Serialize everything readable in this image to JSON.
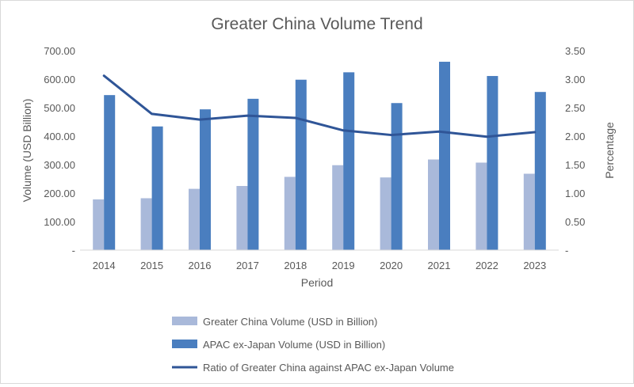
{
  "chart_data": {
    "type": "bar",
    "title": "Greater China Volume Trend",
    "xlabel": "Period",
    "ylabel": "Volume (USD Billion)",
    "y2label": "Percentage",
    "categories": [
      "2014",
      "2015",
      "2016",
      "2017",
      "2018",
      "2019",
      "2020",
      "2021",
      "2022",
      "2023"
    ],
    "ylim": [
      0,
      700
    ],
    "y2lim": [
      0,
      3.5
    ],
    "yticks": [
      {
        "value": 0,
        "label": "-"
      },
      {
        "value": 100,
        "label": "100.00"
      },
      {
        "value": 200,
        "label": "200.00"
      },
      {
        "value": 300,
        "label": "300.00"
      },
      {
        "value": 400,
        "label": "400.00"
      },
      {
        "value": 500,
        "label": "500.00"
      },
      {
        "value": 600,
        "label": "600.00"
      },
      {
        "value": 700,
        "label": "700.00"
      }
    ],
    "y2ticks": [
      {
        "value": 0,
        "label": "-"
      },
      {
        "value": 0.5,
        "label": "0.50"
      },
      {
        "value": 1.0,
        "label": "1.00"
      },
      {
        "value": 1.5,
        "label": "1.50"
      },
      {
        "value": 2.0,
        "label": "2.00"
      },
      {
        "value": 2.5,
        "label": "2.50"
      },
      {
        "value": 3.0,
        "label": "3.00"
      },
      {
        "value": 3.5,
        "label": "3.50"
      }
    ],
    "grid": false,
    "legend_position": "bottom",
    "series": [
      {
        "name": "Greater China Volume (USD in Billion)",
        "type": "bar",
        "axis": "left",
        "color": "#a9b9da",
        "values": [
          178,
          182,
          215,
          225,
          257,
          298,
          255,
          318,
          307,
          268
        ]
      },
      {
        "name": "APAC ex-Japan Volume (USD in Billion)",
        "type": "bar",
        "axis": "left",
        "color": "#4a7ebf",
        "values": [
          544,
          434,
          494,
          531,
          598,
          624,
          516,
          661,
          611,
          555
        ]
      },
      {
        "name": "Ratio of Greater China against APAC ex-Japan Volume",
        "type": "line",
        "axis": "right",
        "color": "#2f5597",
        "values": [
          3.06,
          2.39,
          2.29,
          2.36,
          2.32,
          2.1,
          2.02,
          2.08,
          1.99,
          2.07
        ]
      }
    ]
  }
}
